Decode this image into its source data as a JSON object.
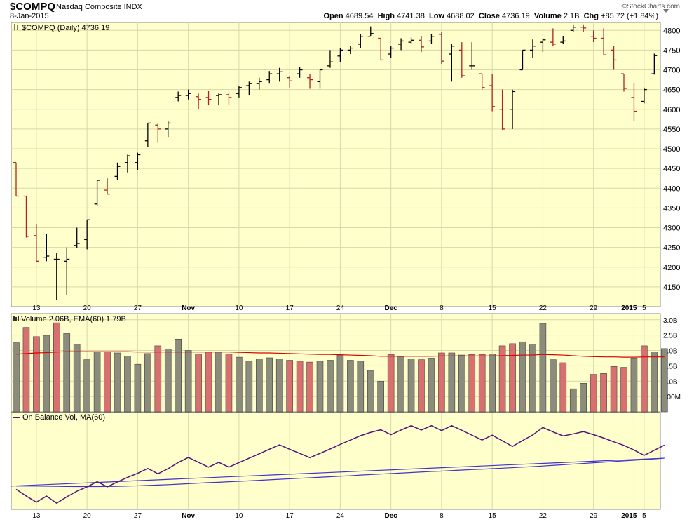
{
  "header": {
    "symbol": "$COMPQ",
    "description": "Nasdaq Composite INDX",
    "brand": "©StockCharts.com",
    "date": "8-Jan-2015",
    "open_label": "Open",
    "open": "4689.54",
    "high_label": "High",
    "high": "4741.38",
    "low_label": "Low",
    "low": "4688.02",
    "close_label": "Close",
    "close": "4736.19",
    "volume_label": "Volume",
    "volume": "2.1B",
    "chg_label": "Chg",
    "chg": "+85.72 (+1.84%)"
  },
  "colors": {
    "panel_bg": "#ffffcc",
    "up": "#000000",
    "down": "#b22222",
    "vol_up": "#8c8c7c",
    "vol_down": "#d97070",
    "ema": "#dd0000",
    "obv": "#551177",
    "obv_ma": "#4433cc",
    "grid": "#d8d8a8"
  },
  "chart_data": [
    {
      "type": "ohlc",
      "legend": "$COMPQ (Daily) 4736.19",
      "x_tick_labels": [
        "13",
        "20",
        "27",
        "Nov",
        "10",
        "17",
        "24",
        "Dec",
        "8",
        "15",
        "22",
        "29",
        "2015",
        "5"
      ],
      "y_ticks": [
        4150,
        4200,
        4250,
        4300,
        4350,
        4400,
        4450,
        4500,
        4550,
        4600,
        4650,
        4700,
        4750,
        4800
      ],
      "ylim": [
        4100,
        4820
      ],
      "bars": [
        {
          "o": 4465,
          "h": 4465,
          "l": 4380,
          "c": 4380
        },
        {
          "o": 4380,
          "h": 4380,
          "l": 4275,
          "c": 4278
        },
        {
          "o": 4280,
          "h": 4310,
          "l": 4213,
          "c": 4215
        },
        {
          "o": 4225,
          "h": 4285,
          "l": 4215,
          "c": 4228
        },
        {
          "o": 4220,
          "h": 4235,
          "l": 4117,
          "c": 4220
        },
        {
          "o": 4215,
          "h": 4250,
          "l": 4130,
          "c": 4220
        },
        {
          "o": 4255,
          "h": 4300,
          "l": 4248,
          "c": 4260
        },
        {
          "o": 4270,
          "h": 4320,
          "l": 4245,
          "c": 4320
        },
        {
          "o": 4360,
          "h": 4420,
          "l": 4355,
          "c": 4420
        },
        {
          "o": 4395,
          "h": 4425,
          "l": 4385,
          "c": 4385
        },
        {
          "o": 4430,
          "h": 4465,
          "l": 4420,
          "c": 4455
        },
        {
          "o": 4465,
          "h": 4485,
          "l": 4440,
          "c": 4482
        },
        {
          "o": 4465,
          "h": 4490,
          "l": 4445,
          "c": 4485
        },
        {
          "o": 4520,
          "h": 4565,
          "l": 4505,
          "c": 4565
        },
        {
          "o": 4560,
          "h": 4565,
          "l": 4515,
          "c": 4550
        },
        {
          "o": 4550,
          "h": 4570,
          "l": 4530,
          "c": 4565
        },
        {
          "o": 4630,
          "h": 4645,
          "l": 4620,
          "c": 4635
        },
        {
          "o": 4635,
          "h": 4650,
          "l": 4625,
          "c": 4640
        },
        {
          "o": 4632,
          "h": 4640,
          "l": 4600,
          "c": 4625
        },
        {
          "o": 4630,
          "h": 4647,
          "l": 4610,
          "c": 4625
        },
        {
          "o": 4635,
          "h": 4640,
          "l": 4610,
          "c": 4637
        },
        {
          "o": 4637,
          "h": 4642,
          "l": 4612,
          "c": 4630
        },
        {
          "o": 4640,
          "h": 4660,
          "l": 4630,
          "c": 4655
        },
        {
          "o": 4660,
          "h": 4670,
          "l": 4635,
          "c": 4665
        },
        {
          "o": 4665,
          "h": 4680,
          "l": 4650,
          "c": 4670
        },
        {
          "o": 4675,
          "h": 4697,
          "l": 4665,
          "c": 4690
        },
        {
          "o": 4690,
          "h": 4705,
          "l": 4670,
          "c": 4695
        },
        {
          "o": 4680,
          "h": 4685,
          "l": 4655,
          "c": 4672
        },
        {
          "o": 4690,
          "h": 4707,
          "l": 4680,
          "c": 4700
        },
        {
          "o": 4680,
          "h": 4690,
          "l": 4652,
          "c": 4675
        },
        {
          "o": 4670,
          "h": 4700,
          "l": 4652,
          "c": 4700
        },
        {
          "o": 4710,
          "h": 4750,
          "l": 4705,
          "c": 4720
        },
        {
          "o": 4735,
          "h": 4755,
          "l": 4720,
          "c": 4750
        },
        {
          "o": 4750,
          "h": 4760,
          "l": 4740,
          "c": 4755
        },
        {
          "o": 4765,
          "h": 4790,
          "l": 4755,
          "c": 4785
        },
        {
          "o": 4785,
          "h": 4810,
          "l": 4785,
          "c": 4792
        },
        {
          "o": 4780,
          "h": 4780,
          "l": 4725,
          "c": 4725
        },
        {
          "o": 4740,
          "h": 4760,
          "l": 4730,
          "c": 4755
        },
        {
          "o": 4765,
          "h": 4780,
          "l": 4750,
          "c": 4773
        },
        {
          "o": 4770,
          "h": 4782,
          "l": 4765,
          "c": 4775
        },
        {
          "o": 4775,
          "h": 4785,
          "l": 4745,
          "c": 4758
        },
        {
          "o": 4773,
          "h": 4790,
          "l": 4765,
          "c": 4785
        },
        {
          "o": 4790,
          "h": 4795,
          "l": 4715,
          "c": 4722
        },
        {
          "o": 4740,
          "h": 4765,
          "l": 4670,
          "c": 4760
        },
        {
          "o": 4750,
          "h": 4770,
          "l": 4680,
          "c": 4685
        },
        {
          "o": 4710,
          "h": 4770,
          "l": 4700,
          "c": 4710
        },
        {
          "o": 4690,
          "h": 4690,
          "l": 4650,
          "c": 4655
        },
        {
          "o": 4660,
          "h": 4690,
          "l": 4595,
          "c": 4607
        },
        {
          "o": 4600,
          "h": 4650,
          "l": 4548,
          "c": 4550
        },
        {
          "o": 4600,
          "h": 4650,
          "l": 4550,
          "c": 4645
        },
        {
          "o": 4700,
          "h": 4750,
          "l": 4700,
          "c": 4750
        },
        {
          "o": 4750,
          "h": 4777,
          "l": 4730,
          "c": 4760
        },
        {
          "o": 4770,
          "h": 4780,
          "l": 4745,
          "c": 4776
        },
        {
          "o": 4770,
          "h": 4805,
          "l": 4760,
          "c": 4765
        },
        {
          "o": 4770,
          "h": 4785,
          "l": 4765,
          "c": 4773
        },
        {
          "o": 4800,
          "h": 4815,
          "l": 4795,
          "c": 4808
        },
        {
          "o": 4808,
          "h": 4815,
          "l": 4795,
          "c": 4806
        },
        {
          "o": 4785,
          "h": 4800,
          "l": 4770,
          "c": 4780
        },
        {
          "o": 4780,
          "h": 4805,
          "l": 4738,
          "c": 4738
        },
        {
          "o": 4750,
          "h": 4760,
          "l": 4700,
          "c": 4725
        },
        {
          "o": 4690,
          "h": 4690,
          "l": 4645,
          "c": 4653
        },
        {
          "o": 4630,
          "h": 4667,
          "l": 4570,
          "c": 4595
        },
        {
          "o": 4620,
          "h": 4655,
          "l": 4615,
          "c": 4650
        },
        {
          "o": 4690,
          "h": 4741,
          "l": 4688,
          "c": 4736
        }
      ]
    },
    {
      "type": "bar",
      "legend": "Volume 2.06B, EMA(60) 1.79B",
      "y_tick_labels": [
        "3.0B",
        "2.5B",
        "2.0B",
        "1.5B",
        "1.0B",
        "500M"
      ],
      "y_ticks": [
        3.0,
        2.5,
        2.0,
        1.5,
        1.0,
        0.5
      ],
      "ylim": [
        0,
        3.2
      ],
      "values": [
        2.25,
        2.75,
        2.45,
        2.48,
        2.9,
        2.55,
        2.2,
        1.7,
        1.95,
        1.95,
        1.92,
        1.82,
        1.55,
        1.9,
        2.15,
        2.05,
        2.37,
        2.0,
        1.88,
        1.95,
        1.95,
        1.88,
        1.78,
        1.65,
        1.72,
        1.76,
        1.72,
        1.68,
        1.65,
        1.62,
        1.65,
        1.68,
        1.85,
        1.68,
        1.65,
        1.35,
        1.0,
        1.87,
        1.8,
        1.72,
        1.7,
        1.75,
        1.92,
        1.92,
        1.85,
        1.87,
        1.87,
        1.88,
        2.15,
        2.22,
        2.28,
        2.18,
        2.88,
        1.7,
        1.6,
        0.75,
        0.93,
        1.22,
        1.25,
        1.48,
        1.45,
        1.75,
        2.15,
        1.95,
        2.06
      ],
      "up": [
        1,
        0,
        0,
        1,
        0,
        1,
        1,
        1,
        1,
        0,
        1,
        1,
        1,
        1,
        0,
        1,
        1,
        1,
        0,
        0,
        1,
        0,
        1,
        1,
        1,
        1,
        1,
        0,
        0,
        0,
        1,
        1,
        1,
        1,
        1,
        1,
        1,
        0,
        1,
        1,
        0,
        1,
        0,
        1,
        1,
        0,
        0,
        1,
        0,
        0,
        1,
        1,
        1,
        1,
        0,
        1,
        1,
        0,
        0,
        0,
        0,
        1,
        0,
        1,
        1
      ],
      "ema": [
        1.88,
        1.9,
        1.92,
        1.93,
        1.95,
        1.96,
        1.96,
        1.96,
        1.96,
        1.96,
        1.96,
        1.96,
        1.95,
        1.95,
        1.95,
        1.95,
        1.95,
        1.95,
        1.95,
        1.95,
        1.95,
        1.95,
        1.94,
        1.93,
        1.92,
        1.92,
        1.91,
        1.9,
        1.89,
        1.88,
        1.87,
        1.87,
        1.86,
        1.85,
        1.84,
        1.83,
        1.81,
        1.81,
        1.81,
        1.81,
        1.81,
        1.81,
        1.82,
        1.82,
        1.82,
        1.82,
        1.82,
        1.82,
        1.83,
        1.84,
        1.85,
        1.85,
        1.87,
        1.86,
        1.85,
        1.83,
        1.81,
        1.8,
        1.79,
        1.79,
        1.78,
        1.78,
        1.79,
        1.79,
        1.79
      ]
    },
    {
      "type": "line",
      "legend": "On Balance Vol, MA(60)",
      "series": [
        {
          "role": "obv",
          "values": [
            -2.25,
            -4.9,
            -7.3,
            -4.9,
            -7.7,
            -5.2,
            -3.0,
            -1.3,
            0.7,
            -1.3,
            0.6,
            2.4,
            4.0,
            5.9,
            3.8,
            5.8,
            8.2,
            10.2,
            8.3,
            6.4,
            8.3,
            6.4,
            8.2,
            9.9,
            11.6,
            13.4,
            15.1,
            13.4,
            11.8,
            10.1,
            11.8,
            13.5,
            15.3,
            17.0,
            18.7,
            20.0,
            21.0,
            19.1,
            20.9,
            22.6,
            20.9,
            22.6,
            20.7,
            22.6,
            20.8,
            18.9,
            17.0,
            18.9,
            16.7,
            14.5,
            16.8,
            19.0,
            21.9,
            20.2,
            18.6,
            19.4,
            20.3,
            19.1,
            17.8,
            16.3,
            14.9,
            13.1,
            11.0,
            13.0,
            15.0
          ]
        },
        {
          "role": "ma",
          "values": [
            -1.0,
            -1.0,
            -1.0,
            -1.05,
            -1.1,
            -1.15,
            -1.2,
            -1.2,
            -1.18,
            -1.15,
            -1.1,
            -1.0,
            -0.9,
            -0.75,
            -0.6,
            -0.45,
            -0.25,
            -0.05,
            0.15,
            0.35,
            0.5,
            0.7,
            0.85,
            1.05,
            1.25,
            1.45,
            1.65,
            1.85,
            2.05,
            2.25,
            2.45,
            2.65,
            2.85,
            3.05,
            3.3,
            3.5,
            3.7,
            3.9,
            4.1,
            4.3,
            4.5,
            4.7,
            4.85,
            5.05,
            5.25,
            5.45,
            5.6,
            5.8,
            6.0,
            6.2,
            6.4,
            6.6,
            6.85,
            7.1,
            7.35,
            7.6,
            7.85,
            8.1,
            8.35,
            8.6,
            8.85,
            9.1,
            9.35,
            9.6,
            9.9
          ]
        }
      ]
    }
  ]
}
